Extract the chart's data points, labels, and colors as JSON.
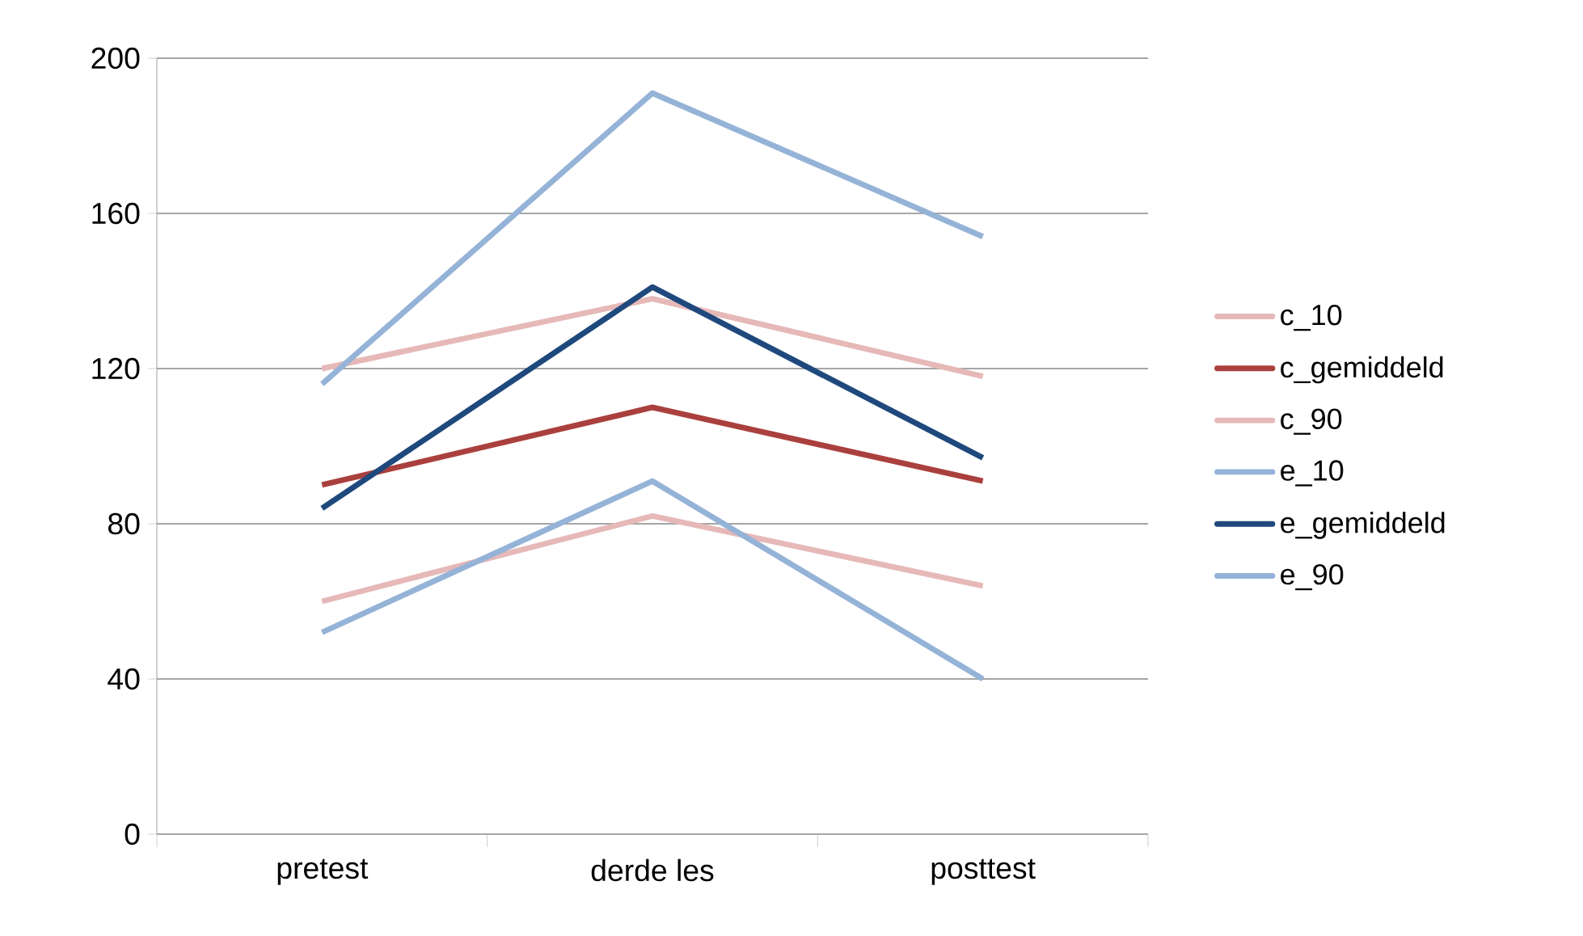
{
  "chart_data": {
    "type": "line",
    "categories": [
      "pretest",
      "derde les",
      "posttest"
    ],
    "series": [
      {
        "name": "c_10",
        "color": "#e6b9b8",
        "values": [
          120,
          138,
          118
        ]
      },
      {
        "name": "c_gemiddeld",
        "color": "#aa403d",
        "values": [
          90,
          110,
          91
        ]
      },
      {
        "name": "c_90",
        "color": "#e6b9b8",
        "values": [
          60,
          82,
          64
        ]
      },
      {
        "name": "e_10",
        "color": "#95b3d7",
        "values": [
          116,
          191,
          154
        ]
      },
      {
        "name": "e_gemiddeld",
        "color": "#1f497d",
        "values": [
          84,
          141,
          97
        ]
      },
      {
        "name": "e_90",
        "color": "#95b3d7",
        "values": [
          52,
          91,
          40
        ]
      }
    ],
    "ylim": [
      0,
      200
    ],
    "yticks": [
      0,
      40,
      80,
      120,
      160,
      200
    ],
    "grid": "y",
    "legend": "right",
    "marker": "none",
    "line_style": "solid"
  }
}
